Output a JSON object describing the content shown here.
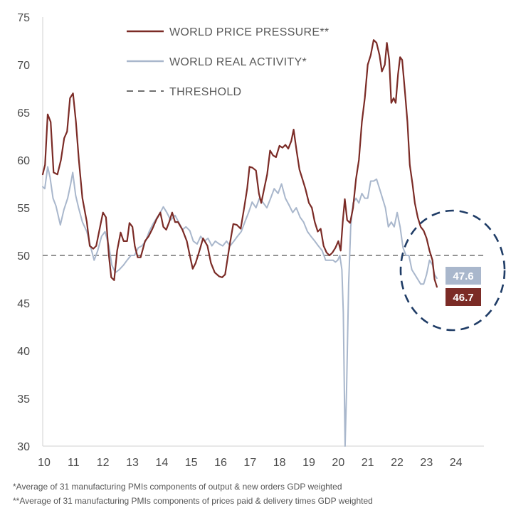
{
  "chart_data": {
    "type": "line",
    "title": "",
    "xlabel": "",
    "ylabel": "",
    "xlim": [
      2010.0,
      2025.0
    ],
    "ylim": [
      30,
      75
    ],
    "y_ticks": [
      "30",
      "35",
      "40",
      "45",
      "50",
      "55",
      "60",
      "65",
      "70",
      "75"
    ],
    "x_ticks": [
      "10",
      "11",
      "12",
      "13",
      "14",
      "15",
      "16",
      "17",
      "18",
      "19",
      "20",
      "21",
      "22",
      "23",
      "24"
    ],
    "threshold": 50,
    "legend": {
      "position": "top-center",
      "entries": [
        {
          "label": "WORLD PRICE PRESSURE**",
          "color": "#7b2b26",
          "style": "solid"
        },
        {
          "label": "WORLD REAL ACTIVITY*",
          "color": "#a9b7cc",
          "style": "solid"
        },
        {
          "label": "THRESHOLD",
          "color": "#707070",
          "style": "dashed"
        }
      ]
    },
    "series": [
      {
        "name": "WORLD PRICE PRESSURE**",
        "color": "#7b2b26",
        "points": [
          [
            2010.0,
            58.5
          ],
          [
            2010.08,
            59.5
          ],
          [
            2010.17,
            64.8
          ],
          [
            2010.27,
            64.0
          ],
          [
            2010.37,
            58.7
          ],
          [
            2010.5,
            58.5
          ],
          [
            2010.62,
            60.0
          ],
          [
            2010.73,
            62.3
          ],
          [
            2010.83,
            63.0
          ],
          [
            2010.93,
            66.5
          ],
          [
            2011.03,
            67.0
          ],
          [
            2011.13,
            64.0
          ],
          [
            2011.23,
            60.0
          ],
          [
            2011.35,
            56.0
          ],
          [
            2011.5,
            53.5
          ],
          [
            2011.6,
            51.0
          ],
          [
            2011.72,
            50.7
          ],
          [
            2011.82,
            51.0
          ],
          [
            2011.95,
            53.0
          ],
          [
            2012.05,
            54.5
          ],
          [
            2012.15,
            54.0
          ],
          [
            2012.25,
            50.0
          ],
          [
            2012.33,
            47.7
          ],
          [
            2012.43,
            47.4
          ],
          [
            2012.53,
            50.5
          ],
          [
            2012.65,
            52.4
          ],
          [
            2012.75,
            51.5
          ],
          [
            2012.87,
            51.5
          ],
          [
            2012.95,
            53.4
          ],
          [
            2013.05,
            53.0
          ],
          [
            2013.13,
            51.0
          ],
          [
            2013.23,
            49.8
          ],
          [
            2013.33,
            49.8
          ],
          [
            2013.48,
            51.5
          ],
          [
            2013.6,
            52.0
          ],
          [
            2013.73,
            52.8
          ],
          [
            2013.87,
            53.8
          ],
          [
            2014.0,
            54.5
          ],
          [
            2014.1,
            53.0
          ],
          [
            2014.2,
            52.7
          ],
          [
            2014.3,
            53.5
          ],
          [
            2014.4,
            54.5
          ],
          [
            2014.5,
            53.5
          ],
          [
            2014.6,
            53.5
          ],
          [
            2014.75,
            52.7
          ],
          [
            2014.9,
            51.5
          ],
          [
            2015.0,
            50.0
          ],
          [
            2015.1,
            48.6
          ],
          [
            2015.2,
            49.2
          ],
          [
            2015.33,
            50.5
          ],
          [
            2015.45,
            51.8
          ],
          [
            2015.6,
            51.0
          ],
          [
            2015.72,
            49.2
          ],
          [
            2015.85,
            48.2
          ],
          [
            2016.0,
            47.8
          ],
          [
            2016.1,
            47.7
          ],
          [
            2016.2,
            48.0
          ],
          [
            2016.35,
            51.0
          ],
          [
            2016.48,
            53.3
          ],
          [
            2016.6,
            53.2
          ],
          [
            2016.73,
            52.8
          ],
          [
            2016.85,
            55.0
          ],
          [
            2016.95,
            57.0
          ],
          [
            2017.03,
            59.3
          ],
          [
            2017.13,
            59.2
          ],
          [
            2017.25,
            58.9
          ],
          [
            2017.35,
            56.5
          ],
          [
            2017.43,
            55.5
          ],
          [
            2017.53,
            57.0
          ],
          [
            2017.63,
            58.5
          ],
          [
            2017.73,
            61.0
          ],
          [
            2017.83,
            60.5
          ],
          [
            2017.93,
            60.3
          ],
          [
            2018.05,
            61.5
          ],
          [
            2018.15,
            61.3
          ],
          [
            2018.25,
            61.6
          ],
          [
            2018.35,
            61.2
          ],
          [
            2018.45,
            62.0
          ],
          [
            2018.53,
            63.2
          ],
          [
            2018.63,
            61.0
          ],
          [
            2018.73,
            59.0
          ],
          [
            2018.83,
            58.0
          ],
          [
            2018.93,
            57.0
          ],
          [
            2019.05,
            55.5
          ],
          [
            2019.15,
            55.0
          ],
          [
            2019.25,
            53.5
          ],
          [
            2019.35,
            52.5
          ],
          [
            2019.45,
            52.8
          ],
          [
            2019.55,
            51.0
          ],
          [
            2019.65,
            50.3
          ],
          [
            2019.75,
            50.0
          ],
          [
            2019.85,
            50.3
          ],
          [
            2019.95,
            50.8
          ],
          [
            2020.05,
            51.5
          ],
          [
            2020.13,
            50.5
          ],
          [
            2020.2,
            53.5
          ],
          [
            2020.27,
            55.9
          ],
          [
            2020.35,
            53.7
          ],
          [
            2020.45,
            53.4
          ],
          [
            2020.55,
            55.0
          ],
          [
            2020.65,
            58.0
          ],
          [
            2020.75,
            60.0
          ],
          [
            2020.85,
            64.0
          ],
          [
            2020.95,
            66.5
          ],
          [
            2021.05,
            70.0
          ],
          [
            2021.15,
            71.0
          ],
          [
            2021.25,
            72.6
          ],
          [
            2021.35,
            72.3
          ],
          [
            2021.45,
            71.0
          ],
          [
            2021.53,
            69.3
          ],
          [
            2021.63,
            70.0
          ],
          [
            2021.7,
            72.3
          ],
          [
            2021.78,
            70.5
          ],
          [
            2021.85,
            66.0
          ],
          [
            2021.93,
            66.5
          ],
          [
            2022.0,
            66.0
          ],
          [
            2022.08,
            69.0
          ],
          [
            2022.15,
            70.8
          ],
          [
            2022.22,
            70.5
          ],
          [
            2022.32,
            67.0
          ],
          [
            2022.4,
            64.0
          ],
          [
            2022.48,
            59.5
          ],
          [
            2022.57,
            57.5
          ],
          [
            2022.65,
            55.5
          ],
          [
            2022.75,
            54.0
          ],
          [
            2022.85,
            53.0
          ],
          [
            2022.95,
            52.6
          ],
          [
            2023.05,
            51.8
          ],
          [
            2023.15,
            50.5
          ],
          [
            2023.25,
            49.5
          ],
          [
            2023.32,
            47.5
          ],
          [
            2023.4,
            46.7
          ]
        ]
      },
      {
        "name": "WORLD REAL ACTIVITY*",
        "color": "#a9b7cc",
        "points": [
          [
            2010.0,
            57.2
          ],
          [
            2010.07,
            57.0
          ],
          [
            2010.17,
            59.3
          ],
          [
            2010.25,
            58.2
          ],
          [
            2010.35,
            56.0
          ],
          [
            2010.45,
            55.2
          ],
          [
            2010.6,
            53.2
          ],
          [
            2010.72,
            54.8
          ],
          [
            2010.85,
            56.0
          ],
          [
            2010.95,
            57.5
          ],
          [
            2011.02,
            58.7
          ],
          [
            2011.12,
            56.3
          ],
          [
            2011.22,
            55.0
          ],
          [
            2011.35,
            53.5
          ],
          [
            2011.5,
            52.5
          ],
          [
            2011.62,
            51.0
          ],
          [
            2011.75,
            49.5
          ],
          [
            2011.87,
            50.5
          ],
          [
            2012.0,
            52.0
          ],
          [
            2012.12,
            52.5
          ],
          [
            2012.25,
            51.0
          ],
          [
            2012.35,
            49.0
          ],
          [
            2012.47,
            48.2
          ],
          [
            2012.6,
            48.5
          ],
          [
            2012.75,
            49.0
          ],
          [
            2012.87,
            49.5
          ],
          [
            2013.0,
            50.0
          ],
          [
            2013.12,
            50.0
          ],
          [
            2013.25,
            50.8
          ],
          [
            2013.37,
            51.0
          ],
          [
            2013.5,
            51.5
          ],
          [
            2013.62,
            52.5
          ],
          [
            2013.75,
            53.3
          ],
          [
            2013.87,
            53.9
          ],
          [
            2014.0,
            54.5
          ],
          [
            2014.1,
            55.1
          ],
          [
            2014.22,
            54.5
          ],
          [
            2014.35,
            53.7
          ],
          [
            2014.5,
            54.2
          ],
          [
            2014.62,
            53.5
          ],
          [
            2014.75,
            52.7
          ],
          [
            2014.87,
            53.0
          ],
          [
            2015.0,
            52.6
          ],
          [
            2015.12,
            51.5
          ],
          [
            2015.25,
            51.2
          ],
          [
            2015.37,
            52.0
          ],
          [
            2015.5,
            51.5
          ],
          [
            2015.62,
            51.8
          ],
          [
            2015.75,
            51.0
          ],
          [
            2015.87,
            51.5
          ],
          [
            2016.0,
            51.2
          ],
          [
            2016.12,
            51.0
          ],
          [
            2016.25,
            51.5
          ],
          [
            2016.37,
            51.0
          ],
          [
            2016.5,
            51.5
          ],
          [
            2016.62,
            52.0
          ],
          [
            2016.75,
            52.5
          ],
          [
            2016.87,
            53.5
          ],
          [
            2017.0,
            54.5
          ],
          [
            2017.12,
            55.6
          ],
          [
            2017.25,
            55.0
          ],
          [
            2017.37,
            56.0
          ],
          [
            2017.5,
            55.5
          ],
          [
            2017.62,
            55.0
          ],
          [
            2017.75,
            56.0
          ],
          [
            2017.87,
            57.0
          ],
          [
            2018.0,
            56.5
          ],
          [
            2018.12,
            57.5
          ],
          [
            2018.25,
            56.0
          ],
          [
            2018.37,
            55.3
          ],
          [
            2018.5,
            54.5
          ],
          [
            2018.62,
            55.0
          ],
          [
            2018.75,
            54.0
          ],
          [
            2018.87,
            53.5
          ],
          [
            2019.0,
            52.5
          ],
          [
            2019.12,
            52.0
          ],
          [
            2019.25,
            51.5
          ],
          [
            2019.37,
            51.0
          ],
          [
            2019.5,
            50.5
          ],
          [
            2019.62,
            49.5
          ],
          [
            2019.75,
            49.5
          ],
          [
            2019.87,
            49.5
          ],
          [
            2019.95,
            49.3
          ],
          [
            2020.03,
            49.5
          ],
          [
            2020.1,
            50.0
          ],
          [
            2020.17,
            48.5
          ],
          [
            2020.22,
            44.0
          ],
          [
            2020.28,
            30.0
          ],
          [
            2020.33,
            36.0
          ],
          [
            2020.4,
            47.0
          ],
          [
            2020.47,
            53.0
          ],
          [
            2020.55,
            55.5
          ],
          [
            2020.65,
            56.0
          ],
          [
            2020.75,
            55.5
          ],
          [
            2020.85,
            56.5
          ],
          [
            2020.95,
            56.0
          ],
          [
            2021.05,
            56.0
          ],
          [
            2021.15,
            57.8
          ],
          [
            2021.25,
            57.8
          ],
          [
            2021.35,
            58.0
          ],
          [
            2021.45,
            57.0
          ],
          [
            2021.55,
            56.0
          ],
          [
            2021.65,
            55.0
          ],
          [
            2021.75,
            53.0
          ],
          [
            2021.85,
            53.5
          ],
          [
            2021.95,
            53.0
          ],
          [
            2022.05,
            54.5
          ],
          [
            2022.15,
            53.0
          ],
          [
            2022.25,
            50.8
          ],
          [
            2022.35,
            50.0
          ],
          [
            2022.45,
            50.0
          ],
          [
            2022.55,
            48.5
          ],
          [
            2022.65,
            48.0
          ],
          [
            2022.75,
            47.5
          ],
          [
            2022.85,
            47.0
          ],
          [
            2022.95,
            47.0
          ],
          [
            2023.05,
            48.0
          ],
          [
            2023.15,
            49.5
          ],
          [
            2023.25,
            49.0
          ],
          [
            2023.32,
            48.0
          ],
          [
            2023.4,
            47.6
          ]
        ]
      }
    ],
    "annotations": [
      {
        "text": "47.6",
        "series": "WORLD REAL ACTIVITY*",
        "color": "#a9b7cc",
        "value": 47.6
      },
      {
        "text": "46.7",
        "series": "WORLD PRICE PRESSURE**",
        "color": "#7b2b26",
        "value": 46.7
      }
    ],
    "highlight_circle": {
      "color": "#1f3c66",
      "style": "dashed"
    }
  },
  "footnotes": [
    "*Average of 31 manufacturing PMIs components of output & new orders GDP weighted",
    "**Average of 31 manufacturing PMIs components of prices paid & delivery times GDP weighted"
  ]
}
